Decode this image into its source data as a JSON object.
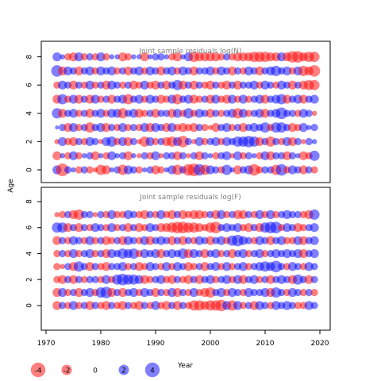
{
  "chart_data": {
    "type": "scatter",
    "subtype": "bubble",
    "ylabel": "Age",
    "xlabel": "Year",
    "x_ticks": [
      1970,
      1980,
      1990,
      2000,
      2010,
      2020
    ],
    "y_ticks": [
      0,
      2,
      4,
      6,
      8
    ],
    "xlim": [
      1971,
      2020
    ],
    "years": [
      1972,
      1973,
      1974,
      1975,
      1976,
      1977,
      1978,
      1979,
      1980,
      1981,
      1982,
      1983,
      1984,
      1985,
      1986,
      1987,
      1988,
      1989,
      1990,
      1991,
      1992,
      1993,
      1994,
      1995,
      1996,
      1997,
      1998,
      1999,
      2000,
      2001,
      2002,
      2003,
      2004,
      2005,
      2006,
      2007,
      2008,
      2009,
      2010,
      2011,
      2012,
      2013,
      2014,
      2015,
      2016,
      2017,
      2018,
      2019
    ],
    "colors": {
      "positive": "#0000FF",
      "negative": "#FF0000",
      "opacity": 0.5
    },
    "legend": {
      "position": "bottom-left",
      "items": [
        {
          "label": "-4",
          "value": -4
        },
        {
          "label": "-2",
          "value": -2
        },
        {
          "label": "0",
          "value": 0
        },
        {
          "label": "2",
          "value": 2
        },
        {
          "label": "4",
          "value": 4
        }
      ]
    },
    "panels": [
      {
        "title": "Joint sample residuals log(N)",
        "ylim": [
          -0.9,
          9.1
        ],
        "ages": [
          0,
          1,
          2,
          3,
          4,
          5,
          6,
          7,
          8
        ],
        "residuals": [
          [
            1.5,
            -3.0,
            1.0,
            0.5,
            -1.0,
            1.0,
            -1.0,
            -0.5,
            -2.0,
            -1.5,
            0.5,
            1.0,
            -2.0,
            1.5,
            1.0,
            -1.0,
            0.5,
            1.0,
            -1.5,
            -1.0,
            0.5,
            1.5,
            -2.0,
            1.0,
            -2.5,
            -3.0,
            2.5,
            -2.0,
            1.5,
            1.0,
            -1.0,
            2.0,
            0.5,
            -1.5,
            1.0,
            1.5,
            -2.5,
            -1.0,
            1.0,
            1.0,
            -2.0,
            2.5,
            -1.0,
            1.5,
            1.0,
            -1.5,
            1.0,
            -1.0
          ],
          [
            -1.5,
            0.5,
            -1.0,
            1.5,
            -1.0,
            0.5,
            1.0,
            -1.5,
            0.5,
            -1.0,
            1.5,
            0.5,
            1.0,
            -1.5,
            0.5,
            -0.5,
            1.0,
            -1.0,
            1.5,
            -0.5,
            1.0,
            1.0,
            -1.5,
            1.0,
            -0.5,
            1.0,
            -1.5,
            1.0,
            0.5,
            -1.0,
            1.0,
            1.5,
            -0.5,
            1.5,
            -1.0,
            1.0,
            0.5,
            -1.0,
            1.5,
            -1.5,
            1.0,
            1.0,
            -1.5,
            1.0,
            0.5,
            -1.5,
            -1.0,
            2.0
          ],
          [
            -0.5,
            1.5,
            -1.0,
            -1.5,
            1.0,
            -1.0,
            1.5,
            1.0,
            -0.5,
            1.5,
            2.0,
            -1.0,
            1.5,
            -1.5,
            1.0,
            -0.5,
            -2.0,
            1.5,
            -1.0,
            1.0,
            -1.5,
            -2.0,
            1.5,
            -2.5,
            1.0,
            -0.5,
            1.5,
            -1.0,
            1.0,
            1.5,
            -1.0,
            1.5,
            1.0,
            2.0,
            2.0,
            2.5,
            2.0,
            -1.5,
            1.0,
            -2.0,
            1.0,
            -1.0,
            1.5,
            -1.5,
            1.0,
            -0.5,
            1.0,
            0.5
          ],
          [
            0.3,
            1.0,
            -1.5,
            1.5,
            -1.0,
            1.0,
            -2.0,
            1.0,
            1.5,
            -1.5,
            1.0,
            -1.0,
            1.5,
            -1.0,
            1.0,
            -1.0,
            1.5,
            -1.5,
            1.5,
            1.0,
            -1.5,
            1.5,
            -1.0,
            -1.5,
            -1.0,
            -1.5,
            1.0,
            -1.0,
            -0.5,
            -1.5,
            1.0,
            1.5,
            -1.0,
            1.0,
            -1.5,
            1.0,
            1.5,
            1.0,
            2.0,
            -1.0,
            2.0,
            2.0,
            1.0,
            -1.5,
            -1.0,
            1.5,
            0.5,
            1.0
          ],
          [
            2.0,
            -1.5,
            1.0,
            1.5,
            -1.0,
            1.0,
            -1.5,
            1.0,
            1.5,
            -1.0,
            1.5,
            1.5,
            -2.0,
            1.0,
            1.5,
            -1.5,
            -1.0,
            1.0,
            -1.5,
            1.0,
            1.0,
            -1.5,
            1.5,
            -1.0,
            2.0,
            -1.0,
            1.5,
            1.0,
            -1.5,
            1.0,
            -1.0,
            1.0,
            1.5,
            -2.0,
            1.5,
            -1.0,
            1.0,
            1.5,
            -1.5,
            1.0,
            1.5,
            2.5,
            1.0,
            1.0,
            -1.0,
            1.5,
            1.0,
            -0.5
          ],
          [
            -1.5,
            2.0,
            -1.0,
            1.5,
            -1.5,
            1.0,
            -1.5,
            1.5,
            -1.0,
            1.0,
            -1.5,
            1.0,
            1.5,
            -2.0,
            1.0,
            1.5,
            -1.0,
            1.5,
            1.0,
            -1.5,
            -1.0,
            1.5,
            -2.0,
            1.0,
            1.5,
            -1.5,
            -1.0,
            1.0,
            -1.5,
            1.5,
            -1.0,
            -1.5,
            1.5,
            -1.0,
            1.5,
            -1.0,
            1.0,
            1.5,
            -1.5,
            1.0,
            1.5,
            2.0,
            -1.5,
            1.0,
            1.5,
            -1.5,
            1.0,
            1.5
          ],
          [
            -1.0,
            1.5,
            1.0,
            -1.5,
            1.0,
            -1.0,
            1.5,
            -1.0,
            1.0,
            -1.5,
            1.5,
            1.0,
            -1.0,
            1.0,
            -1.5,
            -1.0,
            1.5,
            -1.0,
            -1.5,
            1.0,
            -1.5,
            1.0,
            2.0,
            -1.5,
            1.0,
            -1.5,
            1.0,
            -1.0,
            -1.5,
            1.0,
            -1.0,
            -1.5,
            1.0,
            -1.5,
            1.0,
            1.0,
            1.5,
            -1.0,
            1.5,
            1.0,
            -1.0,
            1.5,
            1.0,
            -1.5,
            1.0,
            -1.5,
            -2.0,
            -2.0
          ],
          [
            2.5,
            -1.5,
            1.5,
            1.0,
            -1.5,
            1.0,
            1.5,
            -1.0,
            1.5,
            1.0,
            1.5,
            -1.0,
            1.0,
            -1.5,
            1.0,
            1.5,
            -1.0,
            1.5,
            1.0,
            -1.5,
            1.0,
            1.5,
            -1.0,
            1.5,
            1.0,
            -1.5,
            1.0,
            1.0,
            1.5,
            -1.0,
            1.5,
            1.0,
            -1.5,
            1.0,
            -1.0,
            1.5,
            1.0,
            -1.5,
            1.0,
            1.5,
            2.0,
            1.0,
            1.5,
            -1.0,
            1.5,
            -2.0,
            -1.5,
            -2.5
          ],
          [
            1.5,
            0.5,
            -1.0,
            -1.5,
            1.5,
            -1.0,
            1.0,
            -1.0,
            1.5,
            -1.0,
            0.5,
            0.5,
            -1.5,
            -1.0,
            0.5,
            0.5,
            -1.5,
            0.5,
            1.0,
            1.0,
            0.5,
            -1.0,
            -1.5,
            0.5,
            1.5,
            -2.0,
            -1.5,
            -1.5,
            -1.5,
            -1.5,
            -1.0,
            1.0,
            -1.0,
            -1.5,
            -1.5,
            -1.5,
            -2.0,
            -2.0,
            -2.0,
            -1.5,
            -1.5,
            1.5,
            -1.5,
            -2.5,
            -2.5,
            -1.5,
            -2.0,
            -2.0
          ]
        ]
      },
      {
        "title": "Joint sample residuals log(F)",
        "ylim": [
          -1.9,
          9.1
        ],
        "ages": [
          0,
          1,
          2,
          3,
          4,
          5,
          6,
          7
        ],
        "residuals": [
          [
            -1.5,
            1.0,
            -1.0,
            1.5,
            -1.0,
            1.0,
            -1.5,
            1.0,
            -1.0,
            -1.5,
            1.0,
            -1.0,
            -1.5,
            1.0,
            -1.0,
            -1.5,
            1.0,
            -1.0,
            1.5,
            -1.0,
            -1.5,
            1.0,
            -1.5,
            1.0,
            -1.0,
            -2.0,
            -2.0,
            -1.5,
            -2.0,
            -2.0,
            -2.5,
            1.5,
            -2.0,
            1.5,
            -1.0,
            1.0,
            -1.5,
            1.5,
            1.0,
            -1.0,
            1.5,
            1.0,
            1.5,
            1.0,
            -1.0,
            -1.0,
            1.5,
            1.0
          ],
          [
            -1.5,
            1.5,
            -1.0,
            1.0,
            -1.5,
            1.0,
            1.5,
            -1.0,
            2.0,
            2.5,
            -1.5,
            1.0,
            -1.5,
            1.0,
            1.5,
            -1.0,
            1.5,
            1.0,
            -1.5,
            1.0,
            -1.0,
            1.5,
            -1.5,
            1.0,
            -1.0,
            1.5,
            -1.0,
            -1.5,
            -2.0,
            1.0,
            1.5,
            -1.0,
            1.5,
            1.0,
            -1.0,
            1.5,
            1.0,
            1.0,
            1.5,
            -1.5,
            2.0,
            1.0,
            -1.0,
            1.5,
            1.0,
            -1.0,
            1.0,
            -1.0
          ],
          [
            -1.0,
            -1.5,
            1.0,
            -1.5,
            1.0,
            -1.0,
            1.0,
            1.0,
            -1.0,
            1.5,
            -1.0,
            2.0,
            2.5,
            2.0,
            2.0,
            1.5,
            -1.5,
            -1.0,
            1.0,
            1.5,
            -1.0,
            -1.5,
            1.0,
            -1.0,
            -1.5,
            1.0,
            -1.5,
            1.0,
            1.5,
            -1.0,
            1.0,
            1.5,
            -1.0,
            1.5,
            -1.5,
            1.0,
            1.5,
            -1.0,
            1.0,
            -1.5,
            1.0,
            1.5,
            1.0,
            -1.5,
            2.0,
            1.0,
            -1.5,
            1.0
          ],
          [
            -1.0,
            -0.5,
            1.0,
            -1.5,
            2.0,
            1.0,
            -1.5,
            1.0,
            -1.0,
            -1.5,
            1.0,
            1.0,
            1.5,
            -1.0,
            1.0,
            -1.5,
            -1.0,
            1.5,
            1.0,
            -1.0,
            1.5,
            -1.0,
            1.5,
            1.0,
            -1.5,
            -1.0,
            1.0,
            -1.5,
            1.0,
            1.5,
            -1.0,
            1.5,
            -1.0,
            1.0,
            1.5,
            -1.0,
            1.0,
            1.5,
            2.0,
            1.5,
            2.5,
            1.0,
            -1.0,
            1.5,
            1.0,
            -1.0,
            1.5,
            1.0
          ],
          [
            -1.0,
            1.0,
            -1.0,
            1.5,
            -1.0,
            1.0,
            1.5,
            -1.0,
            1.0,
            -1.5,
            1.5,
            1.0,
            2.0,
            1.5,
            2.0,
            -1.0,
            1.5,
            1.0,
            1.5,
            -1.5,
            1.0,
            1.5,
            1.0,
            2.0,
            -1.5,
            1.5,
            1.0,
            -1.5,
            1.0,
            1.5,
            -1.0,
            1.0,
            -1.5,
            1.0,
            1.5,
            -1.0,
            1.0,
            1.5,
            -1.0,
            1.0,
            1.5,
            1.0,
            1.5,
            1.0,
            1.5,
            -1.5,
            1.0,
            1.5
          ],
          [
            -1.5,
            1.0,
            -1.0,
            1.5,
            1.0,
            -1.0,
            1.5,
            -1.0,
            1.0,
            -1.5,
            -1.0,
            1.0,
            -1.5,
            1.5,
            1.0,
            -1.0,
            1.5,
            -1.5,
            1.0,
            1.5,
            1.0,
            -1.5,
            1.0,
            -1.5,
            1.0,
            -1.0,
            1.5,
            1.0,
            -1.5,
            1.0,
            1.5,
            -1.0,
            2.0,
            2.5,
            1.5,
            1.0,
            -1.0,
            1.5,
            1.0,
            -1.5,
            1.0,
            1.5,
            -1.0,
            -1.0,
            1.5,
            -1.5,
            1.0,
            1.5
          ],
          [
            2.0,
            2.0,
            -1.5,
            1.0,
            -1.5,
            1.0,
            -1.0,
            1.5,
            1.0,
            -1.0,
            1.5,
            -1.0,
            1.0,
            -1.5,
            1.0,
            -1.5,
            -1.0,
            1.5,
            1.0,
            -1.5,
            -1.5,
            -2.0,
            -2.5,
            -2.5,
            -2.0,
            -2.0,
            -1.5,
            -1.0,
            -2.0,
            -2.5,
            1.0,
            1.5,
            1.0,
            1.5,
            -1.0,
            -1.5,
            1.0,
            -1.5,
            2.0,
            2.5,
            2.5,
            -1.0,
            1.5,
            1.0,
            -1.5,
            -1.0,
            1.0,
            1.5
          ],
          [
            -0.5,
            -1.0,
            1.0,
            -1.5,
            -2.0,
            1.0,
            1.0,
            -0.5,
            1.0,
            -1.0,
            1.5,
            -1.0,
            -1.0,
            1.5,
            1.0,
            -1.0,
            -1.5,
            1.0,
            -1.0,
            1.5,
            -1.0,
            -1.5,
            1.0,
            -1.5,
            -1.0,
            -1.5,
            -1.5,
            -1.0,
            1.0,
            -1.5,
            1.5,
            -1.0,
            1.0,
            -1.5,
            -1.5,
            1.0,
            -1.0,
            1.5,
            -1.0,
            1.5,
            -1.0,
            1.0,
            1.5,
            1.0,
            1.0,
            -1.0,
            -1.5,
            2.0
          ]
        ]
      }
    ]
  }
}
